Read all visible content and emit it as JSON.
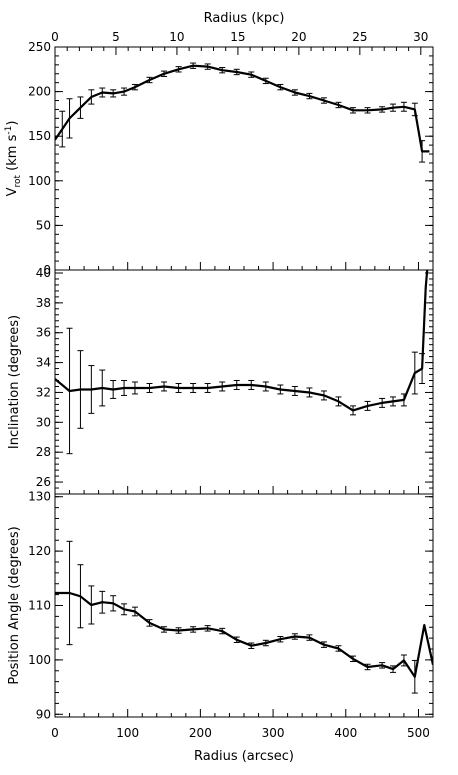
{
  "chart_data": [
    {
      "type": "line",
      "panel": "rotation-velocity",
      "top_axis": {
        "label": "Radius (kpc)",
        "ticks": [
          0,
          5,
          10,
          15,
          20,
          25,
          30
        ],
        "tick_labels": [
          "0",
          "5",
          "10",
          "15",
          "20",
          "25",
          "30"
        ]
      },
      "ylabel_parts": [
        "V",
        "rot",
        " (km s",
        "-1",
        ")"
      ],
      "xlim": [
        0,
        520
      ],
      "ylim": [
        0,
        250
      ],
      "yticks": [
        0,
        50,
        100,
        150,
        200,
        250
      ],
      "ytick_labels": [
        "0",
        "50",
        "100",
        "150",
        "200",
        "250"
      ],
      "x": [
        0,
        10,
        20,
        35,
        50,
        65,
        80,
        95,
        110,
        130,
        150,
        170,
        190,
        210,
        230,
        250,
        270,
        290,
        310,
        330,
        350,
        370,
        390,
        410,
        430,
        450,
        465,
        480,
        495,
        505,
        515
      ],
      "y": [
        146,
        158,
        170,
        182,
        194,
        199,
        198,
        200,
        205,
        213,
        220,
        225,
        229,
        228,
        224,
        222,
        219,
        212,
        205,
        199,
        195,
        190,
        185,
        179,
        179,
        180,
        182,
        183,
        180,
        133,
        133
      ],
      "err": [
        0,
        20,
        22,
        12,
        8,
        5,
        4,
        4,
        3,
        3,
        3,
        3,
        3,
        3,
        3,
        3,
        3,
        3,
        3,
        3,
        3,
        3,
        3,
        3,
        3,
        3,
        4,
        5,
        7,
        12,
        0
      ]
    },
    {
      "type": "line",
      "panel": "inclination",
      "ylabel": "Inclination (degrees)",
      "xlim": [
        0,
        520
      ],
      "ylim": [
        25.2,
        40.2
      ],
      "yticks": [
        26,
        28,
        30,
        32,
        34,
        36,
        38,
        40
      ],
      "ytick_labels": [
        "26",
        "28",
        "30",
        "32",
        "34",
        "36",
        "38",
        "40"
      ],
      "x": [
        0,
        20,
        35,
        50,
        65,
        80,
        95,
        110,
        130,
        150,
        170,
        190,
        210,
        230,
        250,
        270,
        290,
        310,
        330,
        350,
        370,
        390,
        410,
        430,
        450,
        465,
        480,
        495,
        505,
        510,
        512
      ],
      "y": [
        32.9,
        32.1,
        32.2,
        32.2,
        32.3,
        32.2,
        32.3,
        32.3,
        32.3,
        32.4,
        32.3,
        32.3,
        32.3,
        32.4,
        32.5,
        32.5,
        32.4,
        32.2,
        32.1,
        32.0,
        31.8,
        31.4,
        30.8,
        31.1,
        31.3,
        31.4,
        31.5,
        33.3,
        33.6,
        39.0,
        40.2
      ],
      "err": [
        0,
        4.2,
        2.6,
        1.6,
        1.2,
        0.6,
        0.5,
        0.4,
        0.3,
        0.3,
        0.3,
        0.3,
        0.3,
        0.3,
        0.3,
        0.3,
        0.3,
        0.3,
        0.3,
        0.3,
        0.3,
        0.3,
        0.3,
        0.3,
        0.3,
        0.3,
        0.4,
        1.4,
        1.0,
        0,
        0
      ]
    },
    {
      "type": "line",
      "panel": "position-angle",
      "ylabel": "Position Angle (degrees)",
      "xlabel": "Radius (arcsec)",
      "xlim": [
        0,
        520
      ],
      "xticks": [
        0,
        100,
        200,
        300,
        400,
        500
      ],
      "xtick_labels": [
        "0",
        "100",
        "200",
        "300",
        "400",
        "500"
      ],
      "ylim": [
        89.5,
        130.5
      ],
      "yticks": [
        90,
        100,
        110,
        120,
        130
      ],
      "ytick_labels": [
        "90",
        "100",
        "110",
        "120",
        "130"
      ],
      "x": [
        0,
        20,
        35,
        50,
        65,
        80,
        95,
        110,
        130,
        150,
        170,
        190,
        210,
        230,
        250,
        270,
        290,
        310,
        330,
        350,
        370,
        390,
        410,
        430,
        450,
        465,
        480,
        495,
        508,
        520
      ],
      "y": [
        112.3,
        112.3,
        111.7,
        110.1,
        110.6,
        110.4,
        109.3,
        108.9,
        106.8,
        105.6,
        105.4,
        105.6,
        105.8,
        105.3,
        103.7,
        102.6,
        103.1,
        103.8,
        104.3,
        104.1,
        102.8,
        102.1,
        100.2,
        98.7,
        99.0,
        98.3,
        99.9,
        96.9,
        106.4,
        99.1
      ],
      "err": [
        0,
        9.5,
        5.8,
        3.5,
        2.0,
        1.4,
        1.0,
        0.8,
        0.6,
        0.5,
        0.5,
        0.5,
        0.5,
        0.5,
        0.5,
        0.5,
        0.5,
        0.5,
        0.5,
        0.5,
        0.5,
        0.5,
        0.5,
        0.5,
        0.5,
        0.6,
        1.0,
        3.0,
        0,
        0
      ]
    }
  ]
}
